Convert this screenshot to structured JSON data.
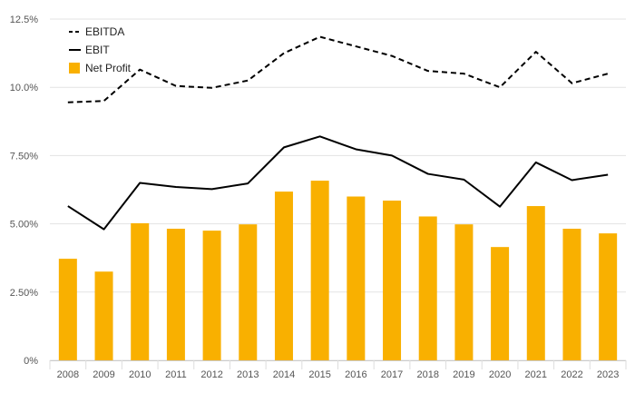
{
  "chart_data": {
    "type": "bar",
    "categories": [
      "2008",
      "2009",
      "2010",
      "2011",
      "2012",
      "2013",
      "2014",
      "2015",
      "2016",
      "2017",
      "2018",
      "2019",
      "2020",
      "2021",
      "2022",
      "2023"
    ],
    "series": [
      {
        "name": "EBITDA",
        "kind": "line",
        "style": "dashed",
        "color": "#000000",
        "values": [
          9.45,
          9.5,
          10.65,
          10.05,
          9.98,
          10.25,
          11.25,
          11.85,
          11.5,
          11.15,
          10.6,
          10.5,
          10.0,
          11.3,
          10.15,
          10.5
        ]
      },
      {
        "name": "EBIT",
        "kind": "line",
        "style": "solid",
        "color": "#000000",
        "values": [
          5.65,
          4.8,
          6.5,
          6.35,
          6.27,
          6.48,
          7.8,
          8.2,
          7.73,
          7.5,
          6.83,
          6.62,
          5.63,
          7.25,
          6.6,
          6.8
        ]
      },
      {
        "name": "Net Profit",
        "kind": "bar",
        "color": "#F9B000",
        "values": [
          3.72,
          3.25,
          5.02,
          4.82,
          4.75,
          4.98,
          6.18,
          6.58,
          6.0,
          5.85,
          5.27,
          4.98,
          4.15,
          5.65,
          4.82,
          4.65
        ]
      }
    ],
    "y_ticks": [
      "0%",
      "2.50%",
      "5.00%",
      "7.50%",
      "10.0%",
      "12.5%"
    ],
    "ylim": [
      0,
      12.5
    ],
    "grid": true,
    "legend_position": "top-left"
  }
}
